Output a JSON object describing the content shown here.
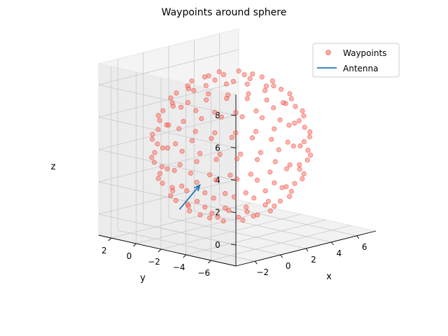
{
  "chart_data": {
    "type": "scatter",
    "projection": "3d",
    "title": "Waypoints around sphere",
    "xlabel": "x",
    "ylabel": "y",
    "zlabel": "z",
    "xlim": [
      -3.5,
      7.5
    ],
    "ylim": [
      -8,
      3
    ],
    "zlim": [
      -1.3,
      9.3
    ],
    "xticks": [
      -2,
      0,
      2,
      4,
      6
    ],
    "yticks": [
      2,
      0,
      -2,
      -4,
      -6
    ],
    "zticks": [
      0,
      2,
      4,
      6,
      8
    ],
    "view": {
      "elev": 10,
      "azim": 35
    },
    "grid": true,
    "legend": {
      "location": "upper right",
      "entries": [
        "Waypoints",
        "Antenna"
      ]
    },
    "colors": {
      "waypoints": "#ff6b5e",
      "waypoints_edge": "#e03a30",
      "antenna": "#1f77b4"
    },
    "series": [
      {
        "name": "Waypoints",
        "kind": "scatter",
        "sphere": {
          "center": [
            2,
            -2,
            4
          ],
          "radius": 4.5,
          "rings": 10,
          "per_ring_max": 24
        },
        "points": []
      },
      {
        "name": "Antenna",
        "kind": "line",
        "points": [
          [
            0.3,
            0.4,
            0.0
          ],
          [
            1.3,
            -0.2,
            1.4
          ]
        ]
      }
    ]
  }
}
